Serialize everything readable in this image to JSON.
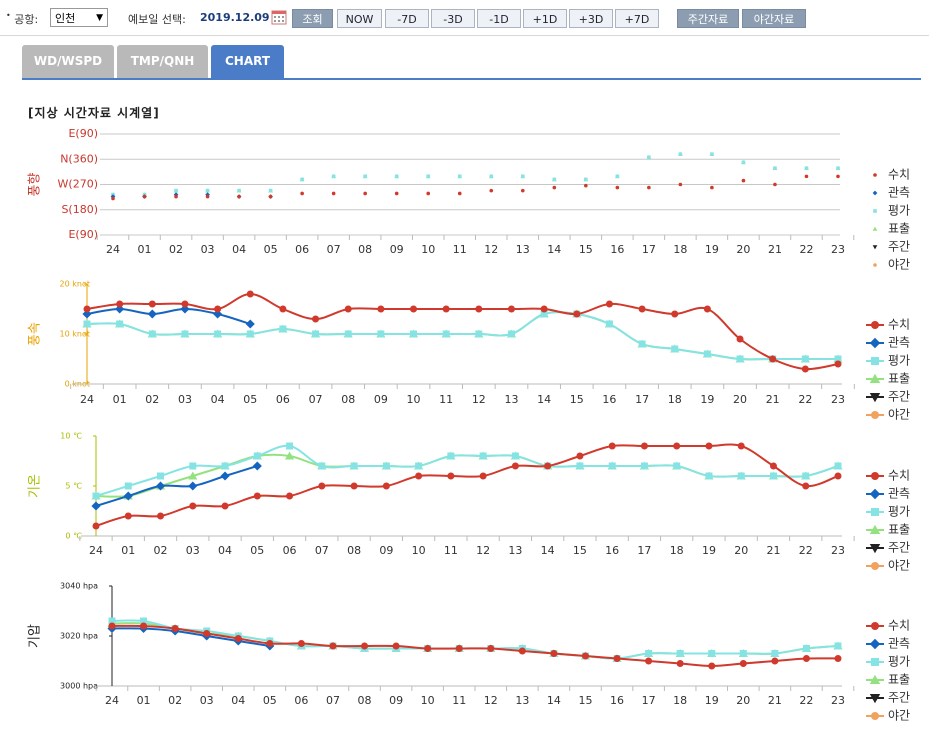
{
  "toolbar": {
    "airport_label": "공항:",
    "airport": "인천",
    "date_label": "예보일 선택:",
    "date": "2019.12.09",
    "buttons": [
      "조회",
      "NOW",
      "-7D",
      "-3D",
      "-1D",
      "+1D",
      "+3D",
      "+7D",
      "주간자료",
      "야간자료"
    ]
  },
  "tabs": {
    "items": [
      "WD/WSPD",
      "TMP/QNH",
      "CHART"
    ],
    "active": 2
  },
  "section_title": "[지상 시간자료 시계열]",
  "chart_data": [
    {
      "type": "scatter",
      "y_label": "풍향",
      "axis_color": "#c8372d",
      "grid": true,
      "categories": [
        "24",
        "01",
        "02",
        "03",
        "04",
        "05",
        "06",
        "07",
        "08",
        "09",
        "10",
        "11",
        "12",
        "13",
        "14",
        "15",
        "16",
        "17",
        "18",
        "19",
        "20",
        "21",
        "22",
        "23"
      ],
      "ylim": [
        90,
        450
      ],
      "yticks": [
        {
          "value": 90,
          "label": "E(90)"
        },
        {
          "value": 180,
          "label": "S(180)"
        },
        {
          "value": 270,
          "label": "W(270)"
        },
        {
          "value": 360,
          "label": "N(360)"
        },
        {
          "value": 450,
          "label": "E(90)"
        }
      ],
      "series": [
        {
          "name": "수치",
          "color": "#d0392b",
          "marker": "circle",
          "values": [
            220,
            227,
            227,
            227,
            227,
            227,
            238,
            238,
            238,
            238,
            238,
            238,
            248,
            248,
            259,
            266,
            259,
            259,
            270,
            259,
            284,
            270,
            299,
            299
          ]
        },
        {
          "name": "관측",
          "color": "#1565c0",
          "marker": "diamond",
          "values": [
            227,
            227,
            234,
            234,
            227,
            227,
            null,
            null,
            null,
            null,
            null,
            null,
            null,
            null,
            null,
            null,
            null,
            null,
            null,
            null,
            null,
            null,
            null,
            null
          ]
        },
        {
          "name": "평가",
          "color": "#86e3e3",
          "marker": "square",
          "values": [
            234,
            234,
            248,
            248,
            248,
            248,
            288,
            299,
            299,
            299,
            299,
            299,
            299,
            299,
            288,
            288,
            299,
            367,
            378,
            378,
            349,
            328,
            328,
            328
          ]
        },
        {
          "name": "표출",
          "color": "#93e27f",
          "marker": "tri-up",
          "values": [
            234,
            234,
            248,
            248,
            248,
            248,
            288,
            299,
            299,
            299,
            299,
            299,
            299,
            299,
            288,
            288,
            299,
            367,
            378,
            378,
            349,
            328,
            328,
            328
          ]
        },
        {
          "name": "주간",
          "color": "#222222",
          "marker": "tri-down",
          "values": [
            null,
            null,
            null,
            null,
            null,
            null,
            null,
            null,
            null,
            null,
            null,
            null,
            null,
            null,
            null,
            null,
            null,
            null,
            null,
            null,
            null,
            null,
            null,
            null
          ]
        },
        {
          "name": "야간",
          "color": "#f2a25f",
          "marker": "circle",
          "values": [
            null,
            null,
            null,
            null,
            null,
            null,
            null,
            null,
            null,
            null,
            null,
            null,
            null,
            null,
            null,
            null,
            null,
            null,
            null,
            null,
            null,
            null,
            null,
            null
          ]
        }
      ]
    },
    {
      "type": "line",
      "y_label": "풍속",
      "axis_color": "#e8a200",
      "grid": false,
      "categories": [
        "24",
        "01",
        "02",
        "03",
        "04",
        "05",
        "06",
        "07",
        "08",
        "09",
        "10",
        "11",
        "12",
        "13",
        "14",
        "15",
        "16",
        "17",
        "18",
        "19",
        "20",
        "21",
        "22",
        "23"
      ],
      "ylim": [
        0,
        20
      ],
      "yticks": [
        {
          "value": 0,
          "label": "0 knot"
        },
        {
          "value": 10,
          "label": "10 knot"
        },
        {
          "value": 20,
          "label": "20 knot"
        }
      ],
      "series": [
        {
          "name": "수치",
          "color": "#d0392b",
          "marker": "circle",
          "values": [
            15,
            16,
            16,
            16,
            15,
            18,
            15,
            13,
            15,
            15,
            15,
            15,
            15,
            15,
            15,
            14,
            16,
            15,
            14,
            15,
            9,
            5,
            3,
            4
          ]
        },
        {
          "name": "관측",
          "color": "#1565c0",
          "marker": "diamond",
          "values": [
            14,
            15,
            14,
            15,
            14,
            12,
            null,
            null,
            null,
            null,
            null,
            null,
            null,
            null,
            null,
            null,
            null,
            null,
            null,
            null,
            null,
            null,
            null,
            null
          ]
        },
        {
          "name": "평가",
          "color": "#86e3e3",
          "marker": "square",
          "values": [
            12,
            12,
            10,
            10,
            10,
            10,
            11,
            10,
            10,
            10,
            10,
            10,
            10,
            10,
            14,
            14,
            12,
            8,
            7,
            6,
            5,
            5,
            5,
            5
          ]
        },
        {
          "name": "표출",
          "color": "#93e27f",
          "marker": "tri-up",
          "values": [
            12,
            12,
            10,
            10,
            10,
            10,
            11,
            10,
            10,
            10,
            10,
            10,
            10,
            10,
            14,
            14,
            12,
            8,
            7,
            6,
            5,
            5,
            5,
            5
          ]
        },
        {
          "name": "주간",
          "color": "#222222",
          "marker": "tri-down",
          "values": [
            null,
            null,
            null,
            null,
            null,
            null,
            null,
            null,
            null,
            null,
            null,
            null,
            null,
            null,
            null,
            null,
            null,
            null,
            null,
            null,
            null,
            null,
            null,
            null
          ]
        },
        {
          "name": "야간",
          "color": "#f2a25f",
          "marker": "circle",
          "values": [
            null,
            null,
            null,
            null,
            null,
            null,
            null,
            null,
            null,
            null,
            null,
            null,
            null,
            null,
            null,
            null,
            null,
            null,
            null,
            null,
            null,
            null,
            null,
            null
          ]
        }
      ]
    },
    {
      "type": "line",
      "y_label": "기온",
      "axis_color": "#a8bf00",
      "grid": false,
      "categories": [
        "24",
        "01",
        "02",
        "03",
        "04",
        "05",
        "06",
        "07",
        "08",
        "09",
        "10",
        "11",
        "12",
        "13",
        "14",
        "15",
        "16",
        "17",
        "18",
        "19",
        "20",
        "21",
        "22",
        "23"
      ],
      "ylim": [
        0,
        10
      ],
      "yticks": [
        {
          "value": 0,
          "label": "0 ℃"
        },
        {
          "value": 5,
          "label": "5 ℃"
        },
        {
          "value": 10,
          "label": "10 ℃"
        }
      ],
      "series": [
        {
          "name": "수치",
          "color": "#d0392b",
          "marker": "circle",
          "values": [
            1,
            2,
            2,
            3,
            3,
            4,
            4,
            5,
            5,
            5,
            6,
            6,
            6,
            7,
            7,
            8,
            9,
            9,
            9,
            9,
            9,
            7,
            5,
            6
          ]
        },
        {
          "name": "관측",
          "color": "#1565c0",
          "marker": "diamond",
          "values": [
            3,
            4,
            5,
            5,
            6,
            7,
            null,
            null,
            null,
            null,
            null,
            null,
            null,
            null,
            null,
            null,
            null,
            null,
            null,
            null,
            null,
            null,
            null,
            null
          ]
        },
        {
          "name": "평가",
          "color": "#86e3e3",
          "marker": "square",
          "values": [
            4,
            5,
            6,
            7,
            7,
            8,
            9,
            7,
            7,
            7,
            7,
            8,
            8,
            8,
            7,
            7,
            7,
            7,
            7,
            6,
            6,
            6,
            6,
            7
          ]
        },
        {
          "name": "표출",
          "color": "#93e27f",
          "marker": "tri-up",
          "values": [
            4,
            4,
            5,
            6,
            7,
            8,
            8,
            7,
            7,
            7,
            7,
            8,
            8,
            8,
            7,
            7,
            7,
            7,
            7,
            6,
            6,
            6,
            6,
            7
          ]
        },
        {
          "name": "주간",
          "color": "#222222",
          "marker": "tri-down",
          "values": [
            null,
            null,
            null,
            null,
            null,
            null,
            null,
            null,
            null,
            null,
            null,
            null,
            null,
            null,
            null,
            null,
            null,
            null,
            null,
            null,
            null,
            null,
            null,
            null
          ]
        },
        {
          "name": "야간",
          "color": "#f2a25f",
          "marker": "circle",
          "values": [
            null,
            null,
            null,
            null,
            null,
            null,
            null,
            null,
            null,
            null,
            null,
            null,
            null,
            null,
            null,
            null,
            null,
            null,
            null,
            null,
            null,
            null,
            null,
            null
          ]
        }
      ]
    },
    {
      "type": "line",
      "y_label": "기압",
      "axis_color": "#222222",
      "grid": false,
      "categories": [
        "24",
        "01",
        "02",
        "03",
        "04",
        "05",
        "06",
        "07",
        "08",
        "09",
        "10",
        "11",
        "12",
        "13",
        "14",
        "15",
        "16",
        "17",
        "18",
        "19",
        "20",
        "21",
        "22",
        "23"
      ],
      "ylim": [
        3000,
        3040
      ],
      "yticks": [
        {
          "value": 3000,
          "label": "3000 hpa"
        },
        {
          "value": 3020,
          "label": "3020 hpa"
        },
        {
          "value": 3040,
          "label": "3040 hpa"
        }
      ],
      "series": [
        {
          "name": "수치",
          "color": "#d0392b",
          "marker": "circle",
          "values": [
            3024,
            3024,
            3023,
            3021,
            3019,
            3017,
            3017,
            3016,
            3016,
            3016,
            3015,
            3015,
            3015,
            3014,
            3013,
            3012,
            3011,
            3010,
            3009,
            3008,
            3009,
            3010,
            3011,
            3011
          ]
        },
        {
          "name": "관측",
          "color": "#1565c0",
          "marker": "diamond",
          "values": [
            3023,
            3023,
            3022,
            3020,
            3018,
            3016,
            null,
            null,
            null,
            null,
            null,
            null,
            null,
            null,
            null,
            null,
            null,
            null,
            null,
            null,
            null,
            null,
            null,
            null
          ]
        },
        {
          "name": "평가",
          "color": "#86e3e3",
          "marker": "square",
          "values": [
            3026,
            3026,
            3023,
            3022,
            3020,
            3018,
            3016,
            3016,
            3015,
            3015,
            3015,
            3015,
            3015,
            3015,
            3013,
            3012,
            3011,
            3013,
            3013,
            3013,
            3013,
            3013,
            3015,
            3016
          ]
        },
        {
          "name": "표출",
          "color": "#93e27f",
          "marker": "tri-up",
          "values": [
            3025,
            3025,
            3023,
            3021,
            3020,
            3018,
            3016,
            3016,
            3015,
            3015,
            3015,
            3015,
            3015,
            3015,
            3013,
            3012,
            3011,
            3013,
            3013,
            3013,
            3013,
            3013,
            3015,
            3016
          ]
        },
        {
          "name": "주간",
          "color": "#222222",
          "marker": "tri-down",
          "values": [
            null,
            null,
            null,
            null,
            null,
            null,
            null,
            null,
            null,
            null,
            null,
            null,
            null,
            null,
            null,
            null,
            null,
            null,
            null,
            null,
            null,
            null,
            null,
            null
          ]
        },
        {
          "name": "야간",
          "color": "#f2a25f",
          "marker": "circle",
          "values": [
            null,
            null,
            null,
            null,
            null,
            null,
            null,
            null,
            null,
            null,
            null,
            null,
            null,
            null,
            null,
            null,
            null,
            null,
            null,
            null,
            null,
            null,
            null,
            null
          ]
        }
      ]
    }
  ]
}
